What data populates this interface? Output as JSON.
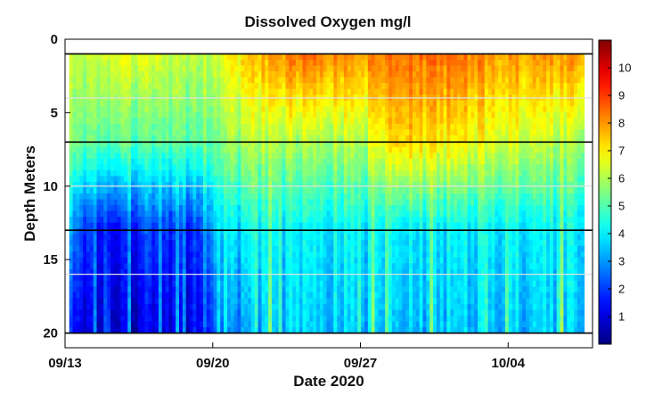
{
  "chart_data": {
    "type": "heatmap",
    "title": "Dissolved Oxygen mg/l",
    "xlabel": "Date 2020",
    "ylabel": "Depth Meters",
    "x_range": [
      "2020-09-13",
      "2020-10-08"
    ],
    "x_ticks": [
      {
        "date": "2020-09-13",
        "label": "09/13"
      },
      {
        "date": "2020-09-20",
        "label": "09/20"
      },
      {
        "date": "2020-09-27",
        "label": "09/27"
      },
      {
        "date": "2020-10-04",
        "label": "10/04"
      }
    ],
    "y_range": [
      0,
      21
    ],
    "y_reversed": true,
    "y_ticks": [
      0,
      5,
      10,
      15,
      20
    ],
    "data_date_range": [
      "2020-09-13",
      "2020-10-07"
    ],
    "data_depth_range": [
      1,
      20
    ],
    "horizontal_lines": [
      {
        "depth": 1,
        "color": "#000000"
      },
      {
        "depth": 7,
        "color": "#000000"
      },
      {
        "depth": 13,
        "color": "#000000"
      },
      {
        "depth": 20,
        "color": "#000000"
      },
      {
        "depth": 4,
        "color": "#e0e0e0"
      },
      {
        "depth": 10,
        "color": "#e0e0e0"
      },
      {
        "depth": 16,
        "color": "#e0e0e0"
      }
    ],
    "colorbar": {
      "ticks": [
        1,
        2,
        3,
        4,
        5,
        6,
        7,
        8,
        9,
        10
      ],
      "range": [
        0,
        11
      ],
      "colormap": "jet"
    },
    "regimes": [
      {
        "date": "2020-09-13",
        "surface": 6.0,
        "top_mid": 5.5,
        "bottom_mid": 3.0,
        "bottom": 1.5
      },
      {
        "date": "2020-09-15",
        "surface": 6.5,
        "top_mid": 5.0,
        "bottom_mid": 1.0,
        "bottom": 0.5
      },
      {
        "date": "2020-09-17",
        "surface": 6.5,
        "top_mid": 5.0,
        "bottom_mid": 2.0,
        "bottom": 1.0
      },
      {
        "date": "2020-09-19",
        "surface": 6.0,
        "top_mid": 5.0,
        "bottom_mid": 1.5,
        "bottom": 1.0
      },
      {
        "date": "2020-09-20",
        "surface": 6.5,
        "top_mid": 5.5,
        "bottom_mid": 3.5,
        "bottom": 2.5
      },
      {
        "date": "2020-09-22",
        "surface": 7.5,
        "top_mid": 6.0,
        "bottom_mid": 4.0,
        "bottom": 3.0
      },
      {
        "date": "2020-09-24",
        "surface": 8.5,
        "top_mid": 6.0,
        "bottom_mid": 4.0,
        "bottom": 3.5
      },
      {
        "date": "2020-09-27",
        "surface": 8.0,
        "top_mid": 6.0,
        "bottom_mid": 4.0,
        "bottom": 3.5
      },
      {
        "date": "2020-09-29",
        "surface": 8.5,
        "top_mid": 7.5,
        "bottom_mid": 4.0,
        "bottom": 3.5
      },
      {
        "date": "2020-10-01",
        "surface": 8.5,
        "top_mid": 7.0,
        "bottom_mid": 4.0,
        "bottom": 3.5
      },
      {
        "date": "2020-10-04",
        "surface": 8.0,
        "top_mid": 6.5,
        "bottom_mid": 4.0,
        "bottom": 3.5
      },
      {
        "date": "2020-10-07",
        "surface": 8.0,
        "top_mid": 6.0,
        "bottom_mid": 4.0,
        "bottom": 3.5
      }
    ]
  }
}
